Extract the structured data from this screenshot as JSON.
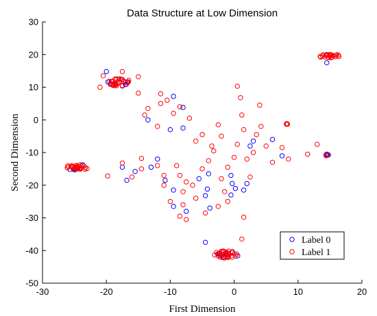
{
  "chart_data": {
    "type": "scatter",
    "title": "Data Structure at Low Dimension",
    "xlabel": "First Dimension",
    "ylabel": "Second Dimension",
    "xlim": [
      -30,
      20
    ],
    "ylim": [
      -50,
      30
    ],
    "xticks": [
      -30,
      -20,
      -10,
      0,
      10,
      20
    ],
    "yticks": [
      -50,
      -40,
      -30,
      -20,
      -10,
      0,
      10,
      20,
      30
    ],
    "grid": false,
    "legend_position": "bottom-right",
    "colors": {
      "Label 0": "#0000ff",
      "Label 1": "#ff0000"
    },
    "clusters": [
      {
        "center": [
          -24.5,
          -14.5
        ],
        "spread": [
          1.8,
          0.9
        ],
        "counts": {
          "Label 0": 6,
          "Label 1": 30
        }
      },
      {
        "center": [
          -18.0,
          11.5
        ],
        "spread": [
          1.8,
          1.2
        ],
        "counts": {
          "Label 0": 6,
          "Label 1": 28
        }
      },
      {
        "center": [
          15.0,
          19.5
        ],
        "spread": [
          1.7,
          0.6
        ],
        "counts": {
          "Label 0": 2,
          "Label 1": 22
        }
      },
      {
        "center": [
          -1.2,
          -41.2
        ],
        "spread": [
          2.0,
          1.1
        ],
        "counts": {
          "Label 0": 10,
          "Label 1": 30
        }
      },
      {
        "center": [
          14.6,
          -10.8
        ],
        "spread": [
          0.3,
          0.25
        ],
        "counts": {
          "Label 0": 1,
          "Label 1": 5
        }
      },
      {
        "center": [
          8.3,
          -1.2
        ],
        "spread": [
          0.2,
          0.2
        ],
        "counts": {
          "Label 0": 0,
          "Label 1": 4
        }
      }
    ],
    "series": [
      {
        "name": "Label 0",
        "points": [
          [
            -20,
            14.8
          ],
          [
            -17,
            10.8
          ],
          [
            -13.5,
            0
          ],
          [
            -9.5,
            7.2
          ],
          [
            -8,
            3.8
          ],
          [
            -8,
            -2.5
          ],
          [
            -10,
            -3
          ],
          [
            -12,
            -12
          ],
          [
            -13,
            -14.5
          ],
          [
            -17.5,
            -14.5
          ],
          [
            -15.5,
            -15.8
          ],
          [
            -16.8,
            -18.5
          ],
          [
            -9.5,
            -21.5
          ],
          [
            -10.8,
            -18.5
          ],
          [
            -9.5,
            -26.5
          ],
          [
            -7.5,
            -28
          ],
          [
            -5.5,
            -18
          ],
          [
            -4,
            -16.5
          ],
          [
            -4.2,
            -21.2
          ],
          [
            -4.5,
            -23.2
          ],
          [
            -3.8,
            -27
          ],
          [
            -4.5,
            -37.5
          ],
          [
            -0.5,
            -17
          ],
          [
            -0.3,
            -19.5
          ],
          [
            -0.5,
            -23
          ],
          [
            0.2,
            -21
          ],
          [
            2,
            -19.5
          ],
          [
            1.5,
            -21.5
          ],
          [
            2.5,
            -8
          ],
          [
            3,
            -6.5
          ],
          [
            6,
            -6
          ],
          [
            7.5,
            -11
          ],
          [
            14.5,
            -10.5
          ],
          [
            14.5,
            17.5
          ]
        ]
      },
      {
        "name": "Label 1",
        "points": [
          [
            -21,
            10
          ],
          [
            -20.5,
            13.5
          ],
          [
            -17.5,
            14.8
          ],
          [
            -15,
            13.2
          ],
          [
            -15,
            8.2
          ],
          [
            -13.5,
            3.5
          ],
          [
            -11.5,
            8
          ],
          [
            -11.5,
            5
          ],
          [
            -10.5,
            6
          ],
          [
            -9.5,
            2
          ],
          [
            -8.5,
            4
          ],
          [
            -7,
            0.5
          ],
          [
            -12,
            -2
          ],
          [
            -14,
            1.5
          ],
          [
            -12,
            -14
          ],
          [
            -14.5,
            -11.8
          ],
          [
            -14.5,
            -15
          ],
          [
            -16,
            -17.5
          ],
          [
            -19.8,
            -17.2
          ],
          [
            -17.5,
            -13.2
          ],
          [
            -11,
            -17
          ],
          [
            -11,
            -20
          ],
          [
            -9,
            -14
          ],
          [
            -8.5,
            -17
          ],
          [
            -10,
            -25
          ],
          [
            -8.5,
            -29.5
          ],
          [
            -8,
            -22
          ],
          [
            -7.5,
            -19
          ],
          [
            -6.5,
            -20
          ],
          [
            -6,
            -24
          ],
          [
            -4.5,
            -28.5
          ],
          [
            -8,
            -26
          ],
          [
            -7.5,
            -30.5
          ],
          [
            -6,
            -6.5
          ],
          [
            -5,
            -4.5
          ],
          [
            -4,
            -12.5
          ],
          [
            -3.5,
            -8
          ],
          [
            -2.5,
            -1.5
          ],
          [
            -2,
            -5
          ],
          [
            -2,
            -18
          ],
          [
            -1.5,
            -22
          ],
          [
            -1,
            -14.5
          ],
          [
            -1,
            -25
          ],
          [
            0,
            -11.5
          ],
          [
            0.5,
            10.3
          ],
          [
            1,
            6.8
          ],
          [
            1.2,
            1.5
          ],
          [
            1.5,
            -3
          ],
          [
            0.5,
            -7.5
          ],
          [
            2,
            -12
          ],
          [
            2.5,
            -17.5
          ],
          [
            3.5,
            -4.5
          ],
          [
            3,
            -10
          ],
          [
            4,
            4.5
          ],
          [
            4.2,
            -2
          ],
          [
            5,
            -8
          ],
          [
            6,
            -13
          ],
          [
            7.5,
            -8.5
          ],
          [
            8.5,
            -12
          ],
          [
            11.5,
            -10.5
          ],
          [
            13,
            -7.5
          ],
          [
            1.2,
            -36.5
          ],
          [
            1.5,
            -29.8
          ],
          [
            -2.5,
            -26.5
          ],
          [
            -3.2,
            -9.5
          ],
          [
            -5,
            -15
          ]
        ]
      }
    ]
  }
}
